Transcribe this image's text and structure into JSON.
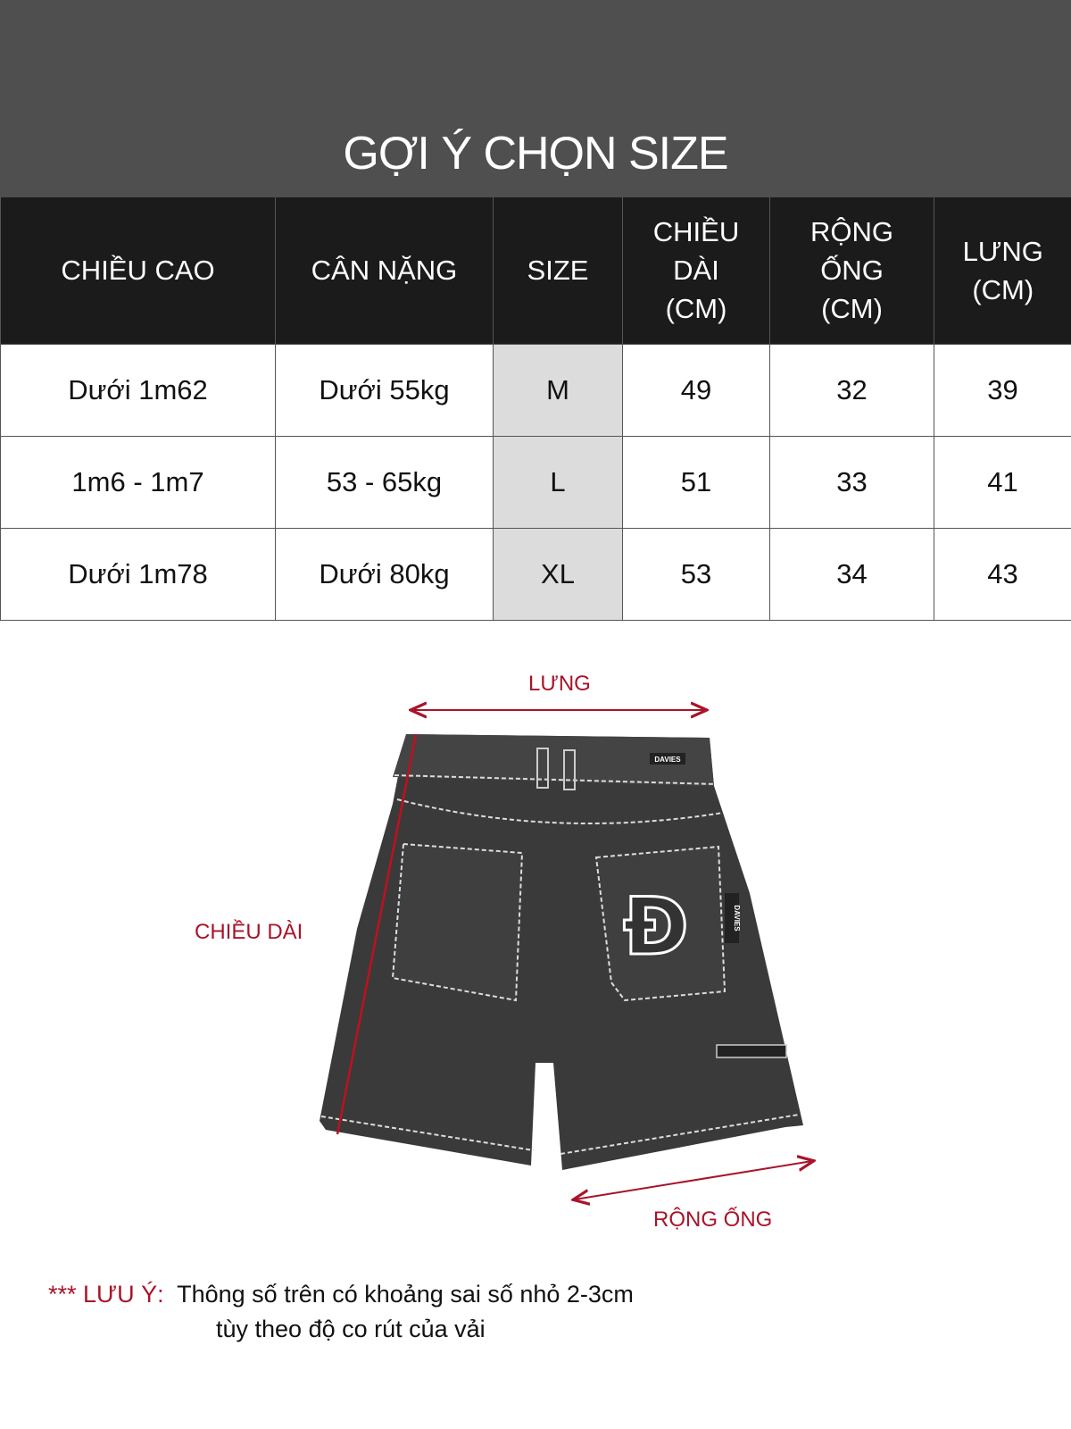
{
  "title": "GỢI Ý CHỌN SIZE",
  "table": {
    "headers": [
      "CHIỀU CAO",
      "CÂN NẶNG",
      "SIZE",
      "CHIỀU\nDÀI\n(CM)",
      "RỘNG\nỐNG\n(CM)",
      "LƯNG\n(CM)"
    ],
    "rows": [
      [
        "Dưới 1m62",
        "Dưới 55kg",
        "M",
        "49",
        "32",
        "39"
      ],
      [
        "1m6 - 1m7",
        "53 - 65kg",
        "L",
        "51",
        "33",
        "41"
      ],
      [
        "Dưới 1m78",
        "Dưới 80kg",
        "XL",
        "53",
        "34",
        "43"
      ]
    ]
  },
  "diagram": {
    "waist_label": "LƯNG",
    "length_label": "CHIỀU DÀI",
    "leg_opening_label": "RỘNG ỐNG",
    "brand_tag": "DAVIES",
    "logo_letter": "Đ"
  },
  "note": {
    "prefix": "*** LƯU Ý:",
    "line1": "Thông số trên có khoảng sai số nhỏ 2-3cm",
    "line2": "tùy theo độ co rút của vải"
  },
  "colors": {
    "accent": "#a8142a",
    "banner": "#4f4f4f",
    "header": "#1b1b1b",
    "size_cell": "#dcdcdc"
  }
}
